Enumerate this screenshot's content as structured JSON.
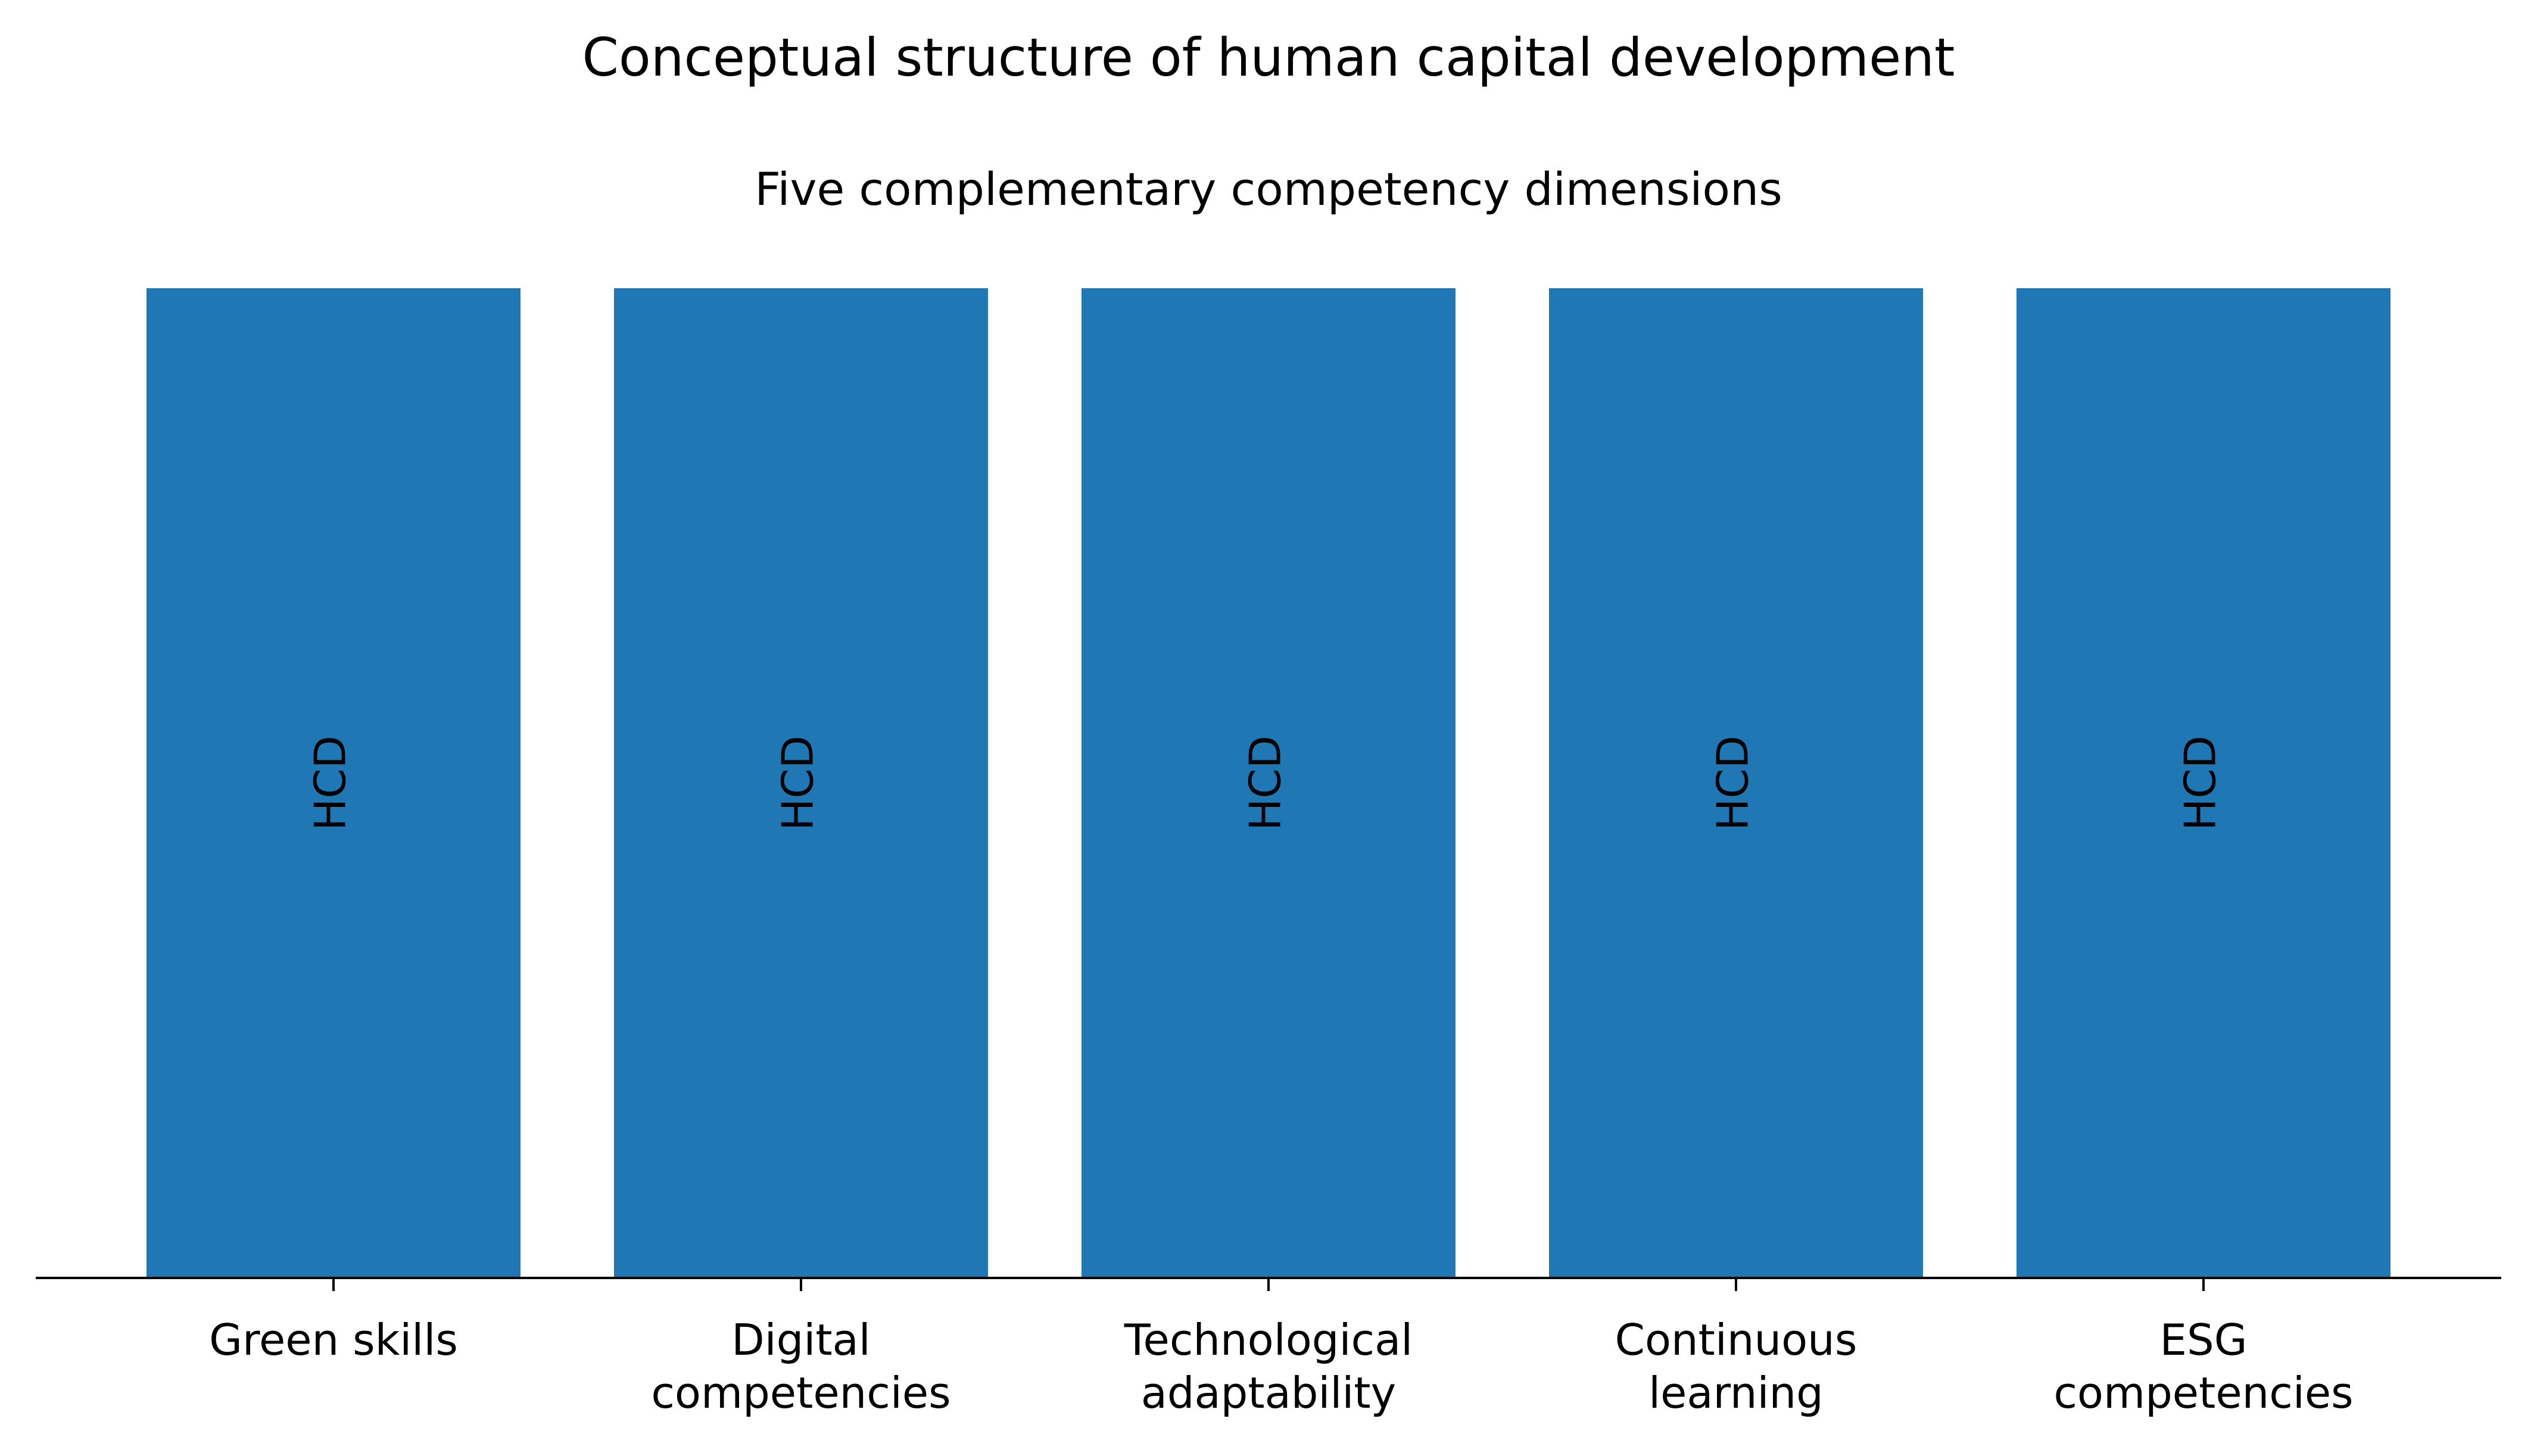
{
  "chart_data": {
    "type": "bar",
    "title": "Conceptual structure of human capital development",
    "subtitle": "Five complementary competency dimensions",
    "categories": [
      "Green skills",
      "Digital\ncompetencies",
      "Technological\nadaptability",
      "Continuous\nlearning",
      "ESG\ncompetencies"
    ],
    "values": [
      1,
      1,
      1,
      1,
      1
    ],
    "annotations": [
      "HCD",
      "HCD",
      "HCD",
      "HCD",
      "HCD"
    ],
    "color": "#1f77b4",
    "ylim": [
      0,
      1
    ]
  }
}
